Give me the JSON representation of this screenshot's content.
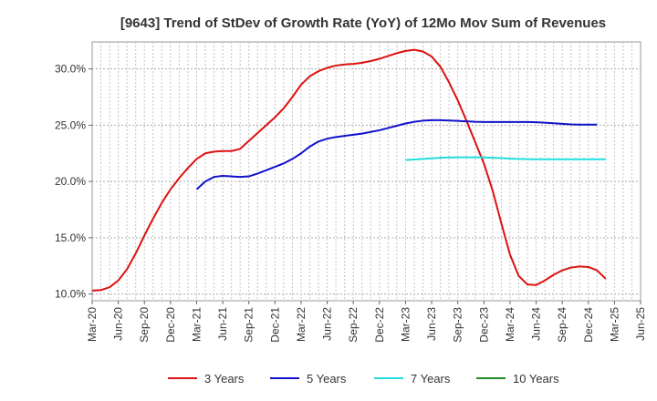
{
  "chart_data": {
    "type": "line",
    "title": "[9643]  Trend of StDev of Growth Rate (YoY) of 12Mo Mov Sum of Revenues",
    "xlabel": "",
    "ylabel": "",
    "ylim": [
      9.4,
      32.4
    ],
    "y_ticks": [
      10,
      15,
      20,
      25,
      30
    ],
    "y_tick_labels": [
      "10.0%",
      "15.0%",
      "20.0%",
      "25.0%",
      "30.0%"
    ],
    "x_tick_labels": [
      "Mar-20",
      "Jun-20",
      "Sep-20",
      "Dec-20",
      "Mar-21",
      "Jun-21",
      "Sep-21",
      "Dec-21",
      "Mar-22",
      "Jun-22",
      "Sep-22",
      "Dec-22",
      "Mar-23",
      "Jun-23",
      "Sep-23",
      "Dec-23",
      "Mar-24",
      "Jun-24",
      "Sep-24",
      "Dec-24",
      "Mar-25",
      "Jun-25"
    ],
    "x_start": "Mar-20",
    "x_step_months": 1,
    "grid": true,
    "legend_position": "bottom",
    "series": [
      {
        "name": "3 Years",
        "color": "#dd1111",
        "start_index": 0,
        "values": [
          10.3,
          10.35,
          10.6,
          11.2,
          12.2,
          13.6,
          15.2,
          16.7,
          18.1,
          19.3,
          20.3,
          21.2,
          22.0,
          22.5,
          22.65,
          22.7,
          22.7,
          22.9,
          23.6,
          24.3,
          25.0,
          25.7,
          26.5,
          27.5,
          28.6,
          29.35,
          29.8,
          30.1,
          30.3,
          30.4,
          30.45,
          30.55,
          30.7,
          30.9,
          31.15,
          31.4,
          31.6,
          31.7,
          31.55,
          31.1,
          30.2,
          28.8,
          27.2,
          25.4,
          23.5,
          21.6,
          19.2,
          16.3,
          13.5,
          11.6,
          10.85,
          10.8,
          11.2,
          11.7,
          12.1,
          12.35,
          12.45,
          12.4,
          12.1,
          11.35
        ]
      },
      {
        "name": "5 Years",
        "color": "#1111cc",
        "start_index": 12,
        "values": [
          19.3,
          20.0,
          20.4,
          20.5,
          20.45,
          20.4,
          20.45,
          20.7,
          21.0,
          21.3,
          21.6,
          22.0,
          22.5,
          23.1,
          23.55,
          23.8,
          23.95,
          24.05,
          24.15,
          24.25,
          24.4,
          24.55,
          24.75,
          24.95,
          25.15,
          25.3,
          25.4,
          25.45,
          25.45,
          25.42,
          25.38,
          25.34,
          25.3,
          25.28,
          25.28,
          25.28,
          25.28,
          25.28,
          25.28,
          25.26,
          25.22,
          25.17,
          25.12,
          25.07,
          25.05,
          25.05,
          25.05
        ]
      },
      {
        "name": "7 Years",
        "color": "#22dddd",
        "start_index": 36,
        "values": [
          21.9,
          21.95,
          22.0,
          22.05,
          22.1,
          22.13,
          22.15,
          22.15,
          22.15,
          22.13,
          22.1,
          22.07,
          22.03,
          22.0,
          21.98,
          21.97,
          21.97,
          21.97,
          21.97,
          21.97,
          21.97,
          21.97,
          21.97,
          21.97
        ]
      },
      {
        "name": "10 Years",
        "color": "#228822",
        "start_index": 0,
        "values": []
      }
    ]
  }
}
